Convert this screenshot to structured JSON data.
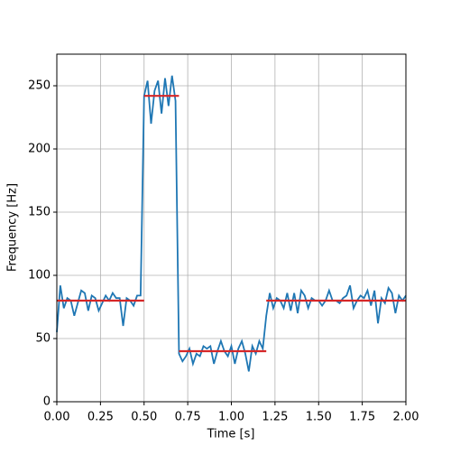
{
  "chart_data": {
    "type": "line",
    "xlabel": "Time [s]",
    "ylabel": "Frequency [Hz]",
    "xlim": [
      0,
      2
    ],
    "ylim": [
      0,
      275
    ],
    "xticks": [
      {
        "value": 0,
        "label": "0.00"
      },
      {
        "value": 0.25,
        "label": "0.25"
      },
      {
        "value": 0.5,
        "label": "0.50"
      },
      {
        "value": 0.75,
        "label": "0.75"
      },
      {
        "value": 1,
        "label": "1.00"
      },
      {
        "value": 1.25,
        "label": "1.25"
      },
      {
        "value": 1.5,
        "label": "1.50"
      },
      {
        "value": 1.75,
        "label": "1.75"
      },
      {
        "value": 2,
        "label": "2.00"
      }
    ],
    "yticks": [
      0,
      50,
      100,
      150,
      200,
      250
    ],
    "grid": true,
    "series": [
      {
        "color": "#1f77b4",
        "x": [
          0,
          0.02,
          0.04,
          0.06,
          0.08,
          0.1,
          0.12,
          0.14,
          0.16,
          0.18,
          0.2,
          0.22,
          0.24,
          0.26,
          0.28,
          0.3,
          0.32,
          0.34,
          0.36,
          0.38,
          0.4,
          0.42,
          0.44,
          0.46,
          0.48,
          0.5,
          0.52,
          0.54,
          0.56,
          0.58,
          0.6,
          0.62,
          0.64,
          0.66,
          0.68,
          0.7,
          0.72,
          0.74,
          0.76,
          0.78,
          0.8,
          0.82,
          0.84,
          0.86,
          0.88,
          0.9,
          0.92,
          0.94,
          0.96,
          0.98,
          1,
          1.02,
          1.04,
          1.06,
          1.08,
          1.1,
          1.12,
          1.14,
          1.16,
          1.18,
          1.2,
          1.22,
          1.24,
          1.26,
          1.28,
          1.3,
          1.32,
          1.34,
          1.36,
          1.38,
          1.4,
          1.42,
          1.44,
          1.46,
          1.48,
          1.5,
          1.52,
          1.54,
          1.56,
          1.58,
          1.6,
          1.62,
          1.64,
          1.66,
          1.68,
          1.7,
          1.72,
          1.74,
          1.76,
          1.78,
          1.8,
          1.82,
          1.84,
          1.86,
          1.88,
          1.9,
          1.92,
          1.94,
          1.96,
          1.98,
          2
        ],
        "values": [
          55,
          92,
          74,
          82,
          80,
          68,
          78,
          88,
          86,
          72,
          84,
          82,
          72,
          78,
          84,
          80,
          86,
          82,
          82,
          60,
          82,
          80,
          76,
          84,
          84,
          242,
          254,
          220,
          246,
          254,
          228,
          256,
          234,
          258,
          238,
          38,
          32,
          36,
          42,
          30,
          38,
          36,
          44,
          42,
          44,
          30,
          40,
          48,
          40,
          36,
          44,
          30,
          42,
          48,
          38,
          24,
          44,
          38,
          48,
          42,
          68,
          86,
          74,
          82,
          80,
          74,
          86,
          72,
          86,
          70,
          88,
          84,
          74,
          82,
          80,
          80,
          76,
          80,
          88,
          80,
          80,
          78,
          82,
          84,
          92,
          74,
          80,
          84,
          82,
          88,
          76,
          88,
          62,
          82,
          78,
          90,
          86,
          70,
          84,
          80,
          84
        ]
      },
      {
        "color": "#d62728",
        "x": [
          0,
          0.5,
          0.5,
          0.5,
          0.7,
          0.7,
          0.7,
          1.2,
          1.2,
          1.2,
          2
        ],
        "values": [
          80,
          80,
          null,
          242,
          242,
          null,
          40,
          40,
          null,
          80,
          80
        ]
      }
    ]
  }
}
